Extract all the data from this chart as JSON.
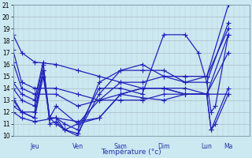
{
  "xlabel": "Température (°c)",
  "bg_color": "#cce8f0",
  "grid_color_major": "#aabbc8",
  "grid_color_minor": "#bbccd8",
  "line_color": "#2222bb",
  "marker": "+",
  "markersize": 4,
  "linewidth": 0.9,
  "ylim": [
    10,
    21
  ],
  "yticks": [
    10,
    11,
    12,
    13,
    14,
    15,
    16,
    17,
    18,
    19,
    20,
    21
  ],
  "xlim": [
    0,
    5.5
  ],
  "day_x": [
    0.5,
    1.5,
    2.5,
    3.5,
    4.5,
    5.0
  ],
  "day_sep": [
    1.0,
    2.0,
    3.0,
    4.0,
    5.0
  ],
  "day_labels": [
    "Jeu",
    "Ven",
    "Sam",
    "Dim",
    "Lun",
    "Ma"
  ],
  "series": [
    [
      0.0,
      18.5,
      0.2,
      17.0,
      0.5,
      16.2,
      1.0,
      16.0,
      1.5,
      15.5,
      2.0,
      15.0,
      2.5,
      14.5,
      3.0,
      14.0,
      3.5,
      14.0,
      4.0,
      13.5,
      4.5,
      13.5,
      5.0,
      13.5
    ],
    [
      0.0,
      17.2,
      0.2,
      14.5,
      0.5,
      14.0,
      1.0,
      14.0,
      1.5,
      13.5,
      2.0,
      13.0,
      2.5,
      13.5,
      3.0,
      13.2,
      3.5,
      13.0,
      4.0,
      13.5,
      4.5,
      13.5,
      5.0,
      17.0
    ],
    [
      0.0,
      16.2,
      0.2,
      14.0,
      0.5,
      13.5,
      1.0,
      13.5,
      1.5,
      12.5,
      2.0,
      13.0,
      2.5,
      13.0,
      3.0,
      13.0,
      3.5,
      13.5,
      4.0,
      13.5,
      4.5,
      13.5,
      5.0,
      18.5
    ],
    [
      0.0,
      14.5,
      0.2,
      13.5,
      0.5,
      13.0,
      0.7,
      16.2,
      0.85,
      11.0,
      1.0,
      11.2,
      1.2,
      10.5,
      1.5,
      11.0,
      2.0,
      13.0,
      2.5,
      14.5,
      3.0,
      14.5,
      3.5,
      15.0,
      4.0,
      14.5,
      4.5,
      15.0,
      5.0,
      19.0
    ],
    [
      0.0,
      14.0,
      0.2,
      13.0,
      0.5,
      12.5,
      0.7,
      16.0,
      0.85,
      11.5,
      1.0,
      11.0,
      1.2,
      10.5,
      1.5,
      10.2,
      2.0,
      13.5,
      2.5,
      15.5,
      3.0,
      15.5,
      3.5,
      15.5,
      4.0,
      14.5,
      4.5,
      14.5,
      5.0,
      19.5
    ],
    [
      0.0,
      13.2,
      0.2,
      12.0,
      0.5,
      12.0,
      0.7,
      15.5,
      0.85,
      11.5,
      1.0,
      11.5,
      1.2,
      10.5,
      1.5,
      10.0,
      2.0,
      14.5,
      2.5,
      15.5,
      3.0,
      16.0,
      3.5,
      15.0,
      4.0,
      15.0,
      4.5,
      15.0,
      5.0,
      21.0
    ],
    [
      0.0,
      13.0,
      0.2,
      12.0,
      0.5,
      11.5,
      0.7,
      15.5,
      0.85,
      11.5,
      1.0,
      11.5,
      1.2,
      11.0,
      1.5,
      10.5,
      2.0,
      14.0,
      2.5,
      14.0,
      3.0,
      13.5,
      3.5,
      18.5,
      4.0,
      18.5,
      4.3,
      17.0,
      4.5,
      14.5,
      4.6,
      12.0,
      4.7,
      12.5,
      5.0,
      18.5
    ],
    [
      0.0,
      12.5,
      0.2,
      12.0,
      0.5,
      11.5,
      0.7,
      15.0,
      0.85,
      11.5,
      1.0,
      12.5,
      1.5,
      11.0,
      2.0,
      11.5,
      2.5,
      13.5,
      3.0,
      14.0,
      3.5,
      14.0,
      4.0,
      13.5,
      4.5,
      13.5,
      4.6,
      10.5,
      4.7,
      11.0,
      5.0,
      13.5
    ],
    [
      0.0,
      12.0,
      0.2,
      11.5,
      0.5,
      11.2,
      1.0,
      11.5,
      1.5,
      11.2,
      2.0,
      11.5,
      2.5,
      13.5,
      3.0,
      14.0,
      3.5,
      14.0,
      4.0,
      14.0,
      4.5,
      13.5,
      4.6,
      10.5,
      5.0,
      14.0
    ]
  ]
}
